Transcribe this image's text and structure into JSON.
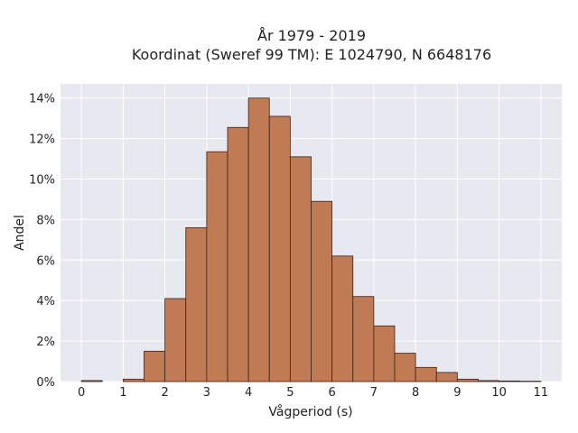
{
  "chart_data": {
    "type": "bar",
    "title_line1": "År 1979 - 2019",
    "title_line2": "Koordinat (Sweref 99 TM): E 1024790, N 6648176",
    "xlabel": "Vågperiod (s)",
    "ylabel": "Andel",
    "bin_width": 0.5,
    "bins": [
      {
        "x0": 0.0,
        "y": 0.05
      },
      {
        "x0": 0.5,
        "y": 0.0
      },
      {
        "x0": 1.0,
        "y": 0.12
      },
      {
        "x0": 1.5,
        "y": 1.5
      },
      {
        "x0": 2.0,
        "y": 4.1
      },
      {
        "x0": 2.5,
        "y": 7.6
      },
      {
        "x0": 3.0,
        "y": 11.35
      },
      {
        "x0": 3.5,
        "y": 12.55
      },
      {
        "x0": 4.0,
        "y": 14.0
      },
      {
        "x0": 4.5,
        "y": 13.1
      },
      {
        "x0": 5.0,
        "y": 11.1
      },
      {
        "x0": 5.5,
        "y": 8.9
      },
      {
        "x0": 6.0,
        "y": 6.2
      },
      {
        "x0": 6.5,
        "y": 4.2
      },
      {
        "x0": 7.0,
        "y": 2.75
      },
      {
        "x0": 7.5,
        "y": 1.4
      },
      {
        "x0": 8.0,
        "y": 0.7
      },
      {
        "x0": 8.5,
        "y": 0.45
      },
      {
        "x0": 9.0,
        "y": 0.12
      },
      {
        "x0": 9.5,
        "y": 0.05
      },
      {
        "x0": 10.0,
        "y": 0.03
      },
      {
        "x0": 10.5,
        "y": 0.02
      }
    ],
    "xticks": [
      0,
      1,
      2,
      3,
      4,
      5,
      6,
      7,
      8,
      9,
      10,
      11
    ],
    "xtick_labels": [
      "0",
      "1",
      "2",
      "3",
      "4",
      "5",
      "6",
      "7",
      "8",
      "9",
      "10",
      "11"
    ],
    "yticks": [
      0,
      2,
      4,
      6,
      8,
      10,
      12,
      14
    ],
    "ytick_labels": [
      "0%",
      "2%",
      "4%",
      "6%",
      "8%",
      "10%",
      "12%",
      "14%"
    ],
    "xlim": [
      -0.5,
      11.5
    ],
    "ylim": [
      0,
      14.7
    ],
    "grid": true,
    "colors": {
      "bar_fill": "#c07a54",
      "bar_edge": "#3a2418",
      "plot_bg": "#e8e8f0",
      "grid": "#ffffff"
    }
  }
}
